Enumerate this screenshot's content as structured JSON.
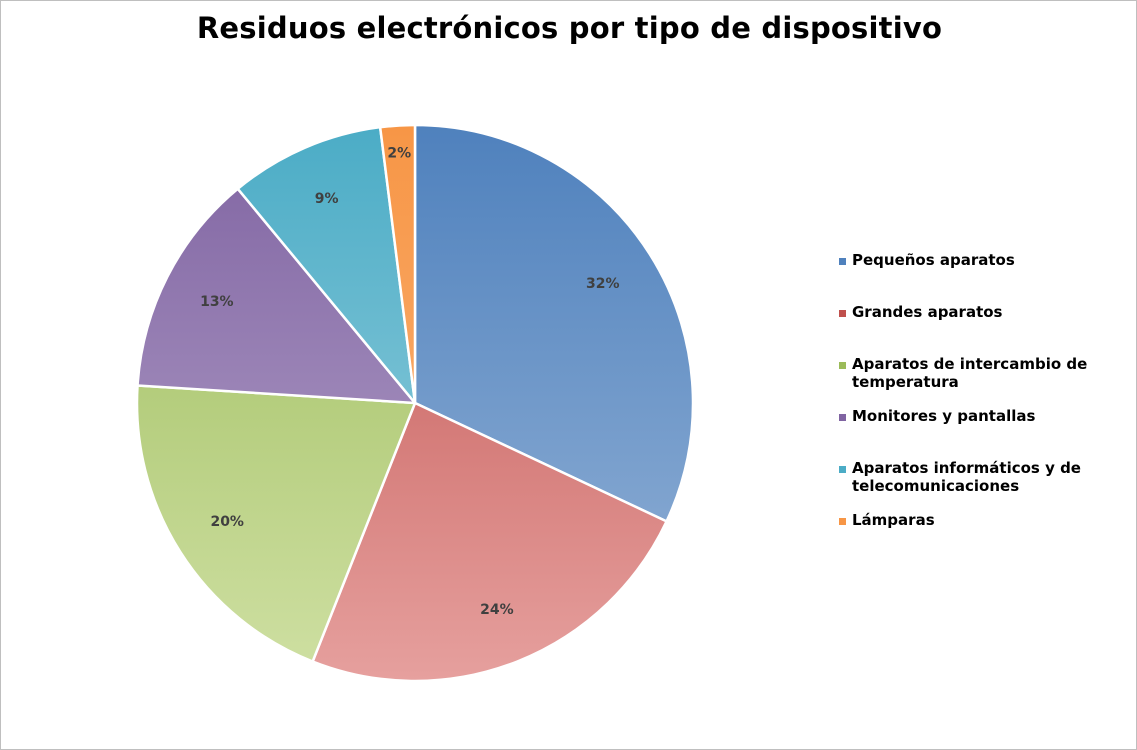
{
  "chart_data": {
    "type": "pie",
    "title": "Residuos electrónicos por tipo de dispositivo",
    "legend_position": "right",
    "slices": [
      {
        "name": "Pequeños aparatos",
        "value": 32,
        "label": "32%",
        "color_top": "#4f81bd",
        "color_bottom": "#95b3d7"
      },
      {
        "name": "Grandes aparatos",
        "value": 24,
        "label": "24%",
        "color_top": "#c0504d",
        "color_bottom": "#e6a09e"
      },
      {
        "name": "Aparatos de intercambio de temperatura",
        "value": 20,
        "label": "20%",
        "color_top": "#9bbb59",
        "color_bottom": "#cfe0a3"
      },
      {
        "name": "Monitores y pantallas",
        "value": 13,
        "label": "13%",
        "color_top": "#8064a2",
        "color_bottom": "#b7a6cc"
      },
      {
        "name": "Aparatos informáticos y de telecomunicaciones",
        "value": 9,
        "label": "9%",
        "color_top": "#4bacc6",
        "color_bottom": "#9fd3e0"
      },
      {
        "name": "Lámparas",
        "value": 2,
        "label": "2%",
        "color_top": "#f79646",
        "color_bottom": "#fab77f"
      }
    ]
  }
}
